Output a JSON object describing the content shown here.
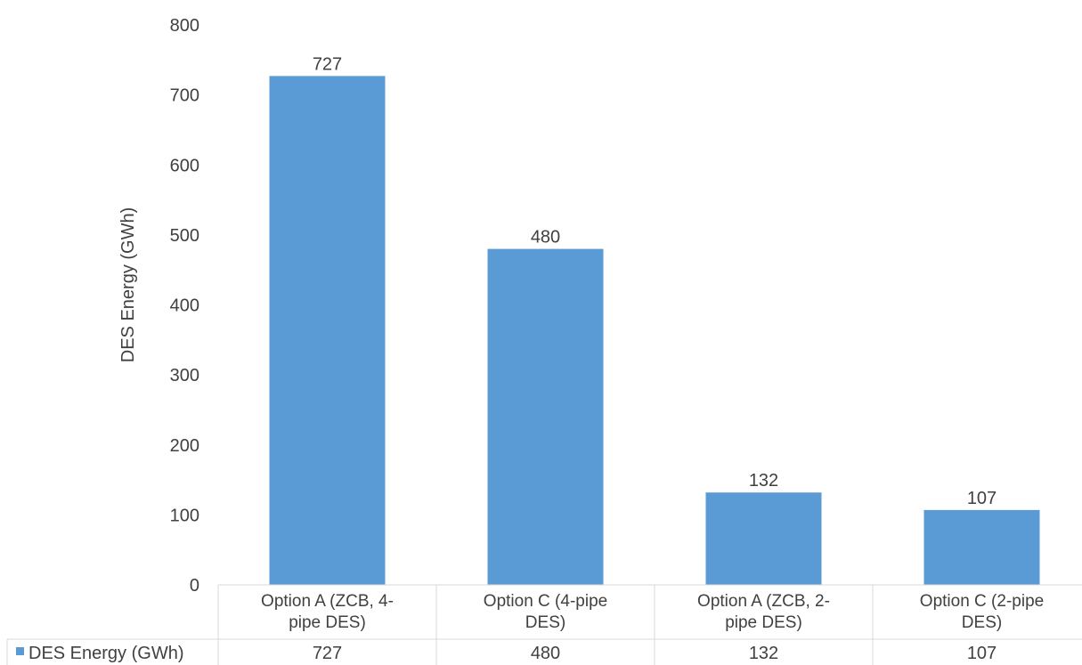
{
  "chart_data": {
    "type": "bar",
    "ylabel": "DES Energy (GWh)",
    "ylim": [
      0,
      800
    ],
    "yticks": [
      0,
      100,
      200,
      300,
      400,
      500,
      600,
      700,
      800
    ],
    "grid": false,
    "legend": "data-table",
    "categories": [
      [
        "Option A (ZCB, 4-",
        "pipe DES)"
      ],
      [
        "Option C (4-pipe",
        "DES)"
      ],
      [
        "Option A (ZCB, 2-",
        "pipe DES)"
      ],
      [
        "Option C (2-pipe",
        "DES)"
      ]
    ],
    "series": [
      {
        "name": "DES Energy (GWh)",
        "values": [
          727,
          480,
          132,
          107
        ],
        "color": "#5b9bd5"
      }
    ]
  }
}
